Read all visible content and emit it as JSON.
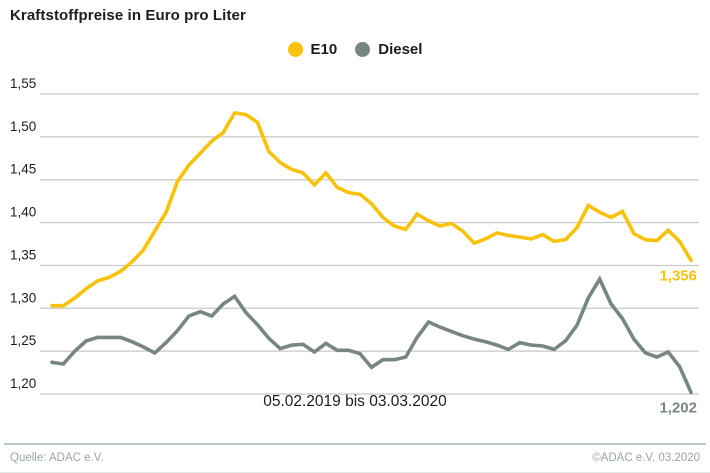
{
  "chart_data": {
    "type": "line",
    "title": "Kraftstoffpreise in Euro pro Liter",
    "x_caption": "05.02.2019 bis 03.03.2020",
    "grid": "horizontal",
    "legend_position": "top-center",
    "ylim": [
      1.2,
      1.55
    ],
    "y_ticks": {
      "values": [
        1.55,
        1.5,
        1.45,
        1.4,
        1.35,
        1.3,
        1.25,
        1.2
      ],
      "labels": [
        "1,55",
        "1,50",
        "1,45",
        "1,40",
        "1,35",
        "1,30",
        "1,25",
        "1,20"
      ]
    },
    "colors": {
      "e10": "#f9c20a",
      "diesel": "#77877f",
      "gridline": "#c8c8c8",
      "text": "#1d1d1b"
    },
    "series": [
      {
        "name": "E10",
        "color": "#f9c20a",
        "end_label": "1,356",
        "end_value": 1.356,
        "values": [
          1.303,
          1.303,
          1.312,
          1.323,
          1.332,
          1.336,
          1.343,
          1.354,
          1.368,
          1.39,
          1.412,
          1.448,
          1.467,
          1.481,
          1.495,
          1.505,
          1.528,
          1.526,
          1.517,
          1.483,
          1.47,
          1.462,
          1.458,
          1.444,
          1.458,
          1.441,
          1.435,
          1.433,
          1.422,
          1.406,
          1.396,
          1.392,
          1.41,
          1.402,
          1.396,
          1.399,
          1.39,
          1.376,
          1.381,
          1.388,
          1.385,
          1.383,
          1.381,
          1.386,
          1.378,
          1.38,
          1.394,
          1.42,
          1.412,
          1.406,
          1.413,
          1.387,
          1.38,
          1.379,
          1.391,
          1.378,
          1.356
        ]
      },
      {
        "name": "Diesel",
        "color": "#77877f",
        "end_label": "1,202",
        "end_value": 1.202,
        "values": [
          1.237,
          1.235,
          1.25,
          1.262,
          1.266,
          1.266,
          1.266,
          1.261,
          1.255,
          1.248,
          1.26,
          1.274,
          1.291,
          1.296,
          1.291,
          1.305,
          1.314,
          1.295,
          1.281,
          1.265,
          1.253,
          1.257,
          1.258,
          1.249,
          1.259,
          1.251,
          1.251,
          1.247,
          1.231,
          1.24,
          1.24,
          1.243,
          1.266,
          1.284,
          1.278,
          1.273,
          1.268,
          1.264,
          1.261,
          1.257,
          1.252,
          1.26,
          1.257,
          1.256,
          1.252,
          1.262,
          1.28,
          1.312,
          1.334,
          1.305,
          1.288,
          1.264,
          1.248,
          1.243,
          1.249,
          1.232,
          1.202
        ]
      }
    ]
  },
  "footer": {
    "source_left": "Quelle: ADAC e.V.",
    "source_right": "©ADAC e.V.  03.2020"
  }
}
